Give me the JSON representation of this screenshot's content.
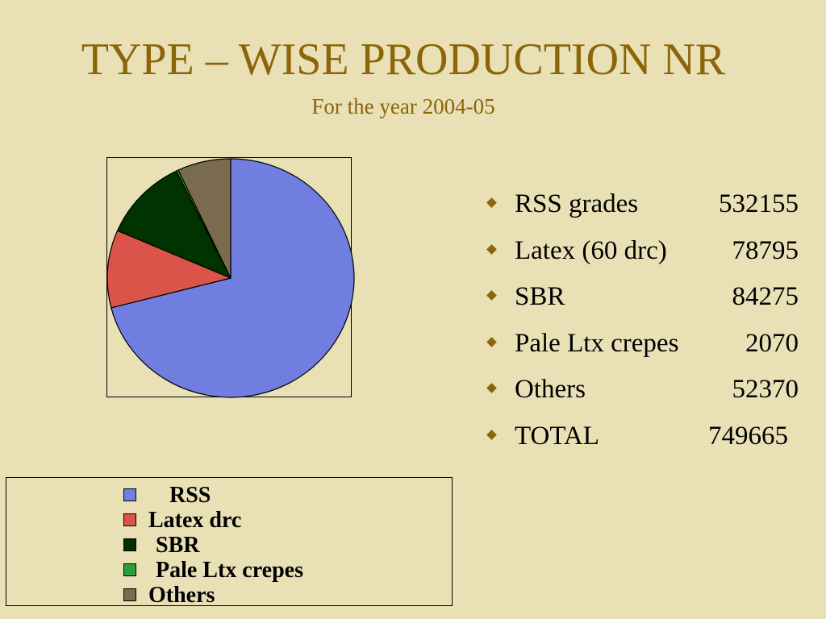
{
  "title": "TYPE – WISE PRODUCTION NR",
  "subtitle": "For the year 2004-05",
  "bullets": [
    {
      "label": "RSS grades",
      "value": "532155"
    },
    {
      "label": "Latex (60 drc)",
      "value": "78795"
    },
    {
      "label": "SBR",
      "value": "84275"
    },
    {
      "label": "Pale Ltx crepes",
      "value": "2070"
    },
    {
      "label": "Others",
      "value": "52370"
    },
    {
      "label": "TOTAL",
      "value": "749665"
    }
  ],
  "chart_data": {
    "type": "pie",
    "categories": [
      "RSS",
      "Latex drc",
      "SBR",
      "Pale Ltx crepes",
      "Others"
    ],
    "values": [
      532155,
      78795,
      84275,
      2070,
      52370
    ],
    "colors": [
      "#707EE0",
      "#DB5449",
      "#003300",
      "#2E9E3A",
      "#7A6B4F"
    ],
    "legend_position": "bottom-left"
  }
}
